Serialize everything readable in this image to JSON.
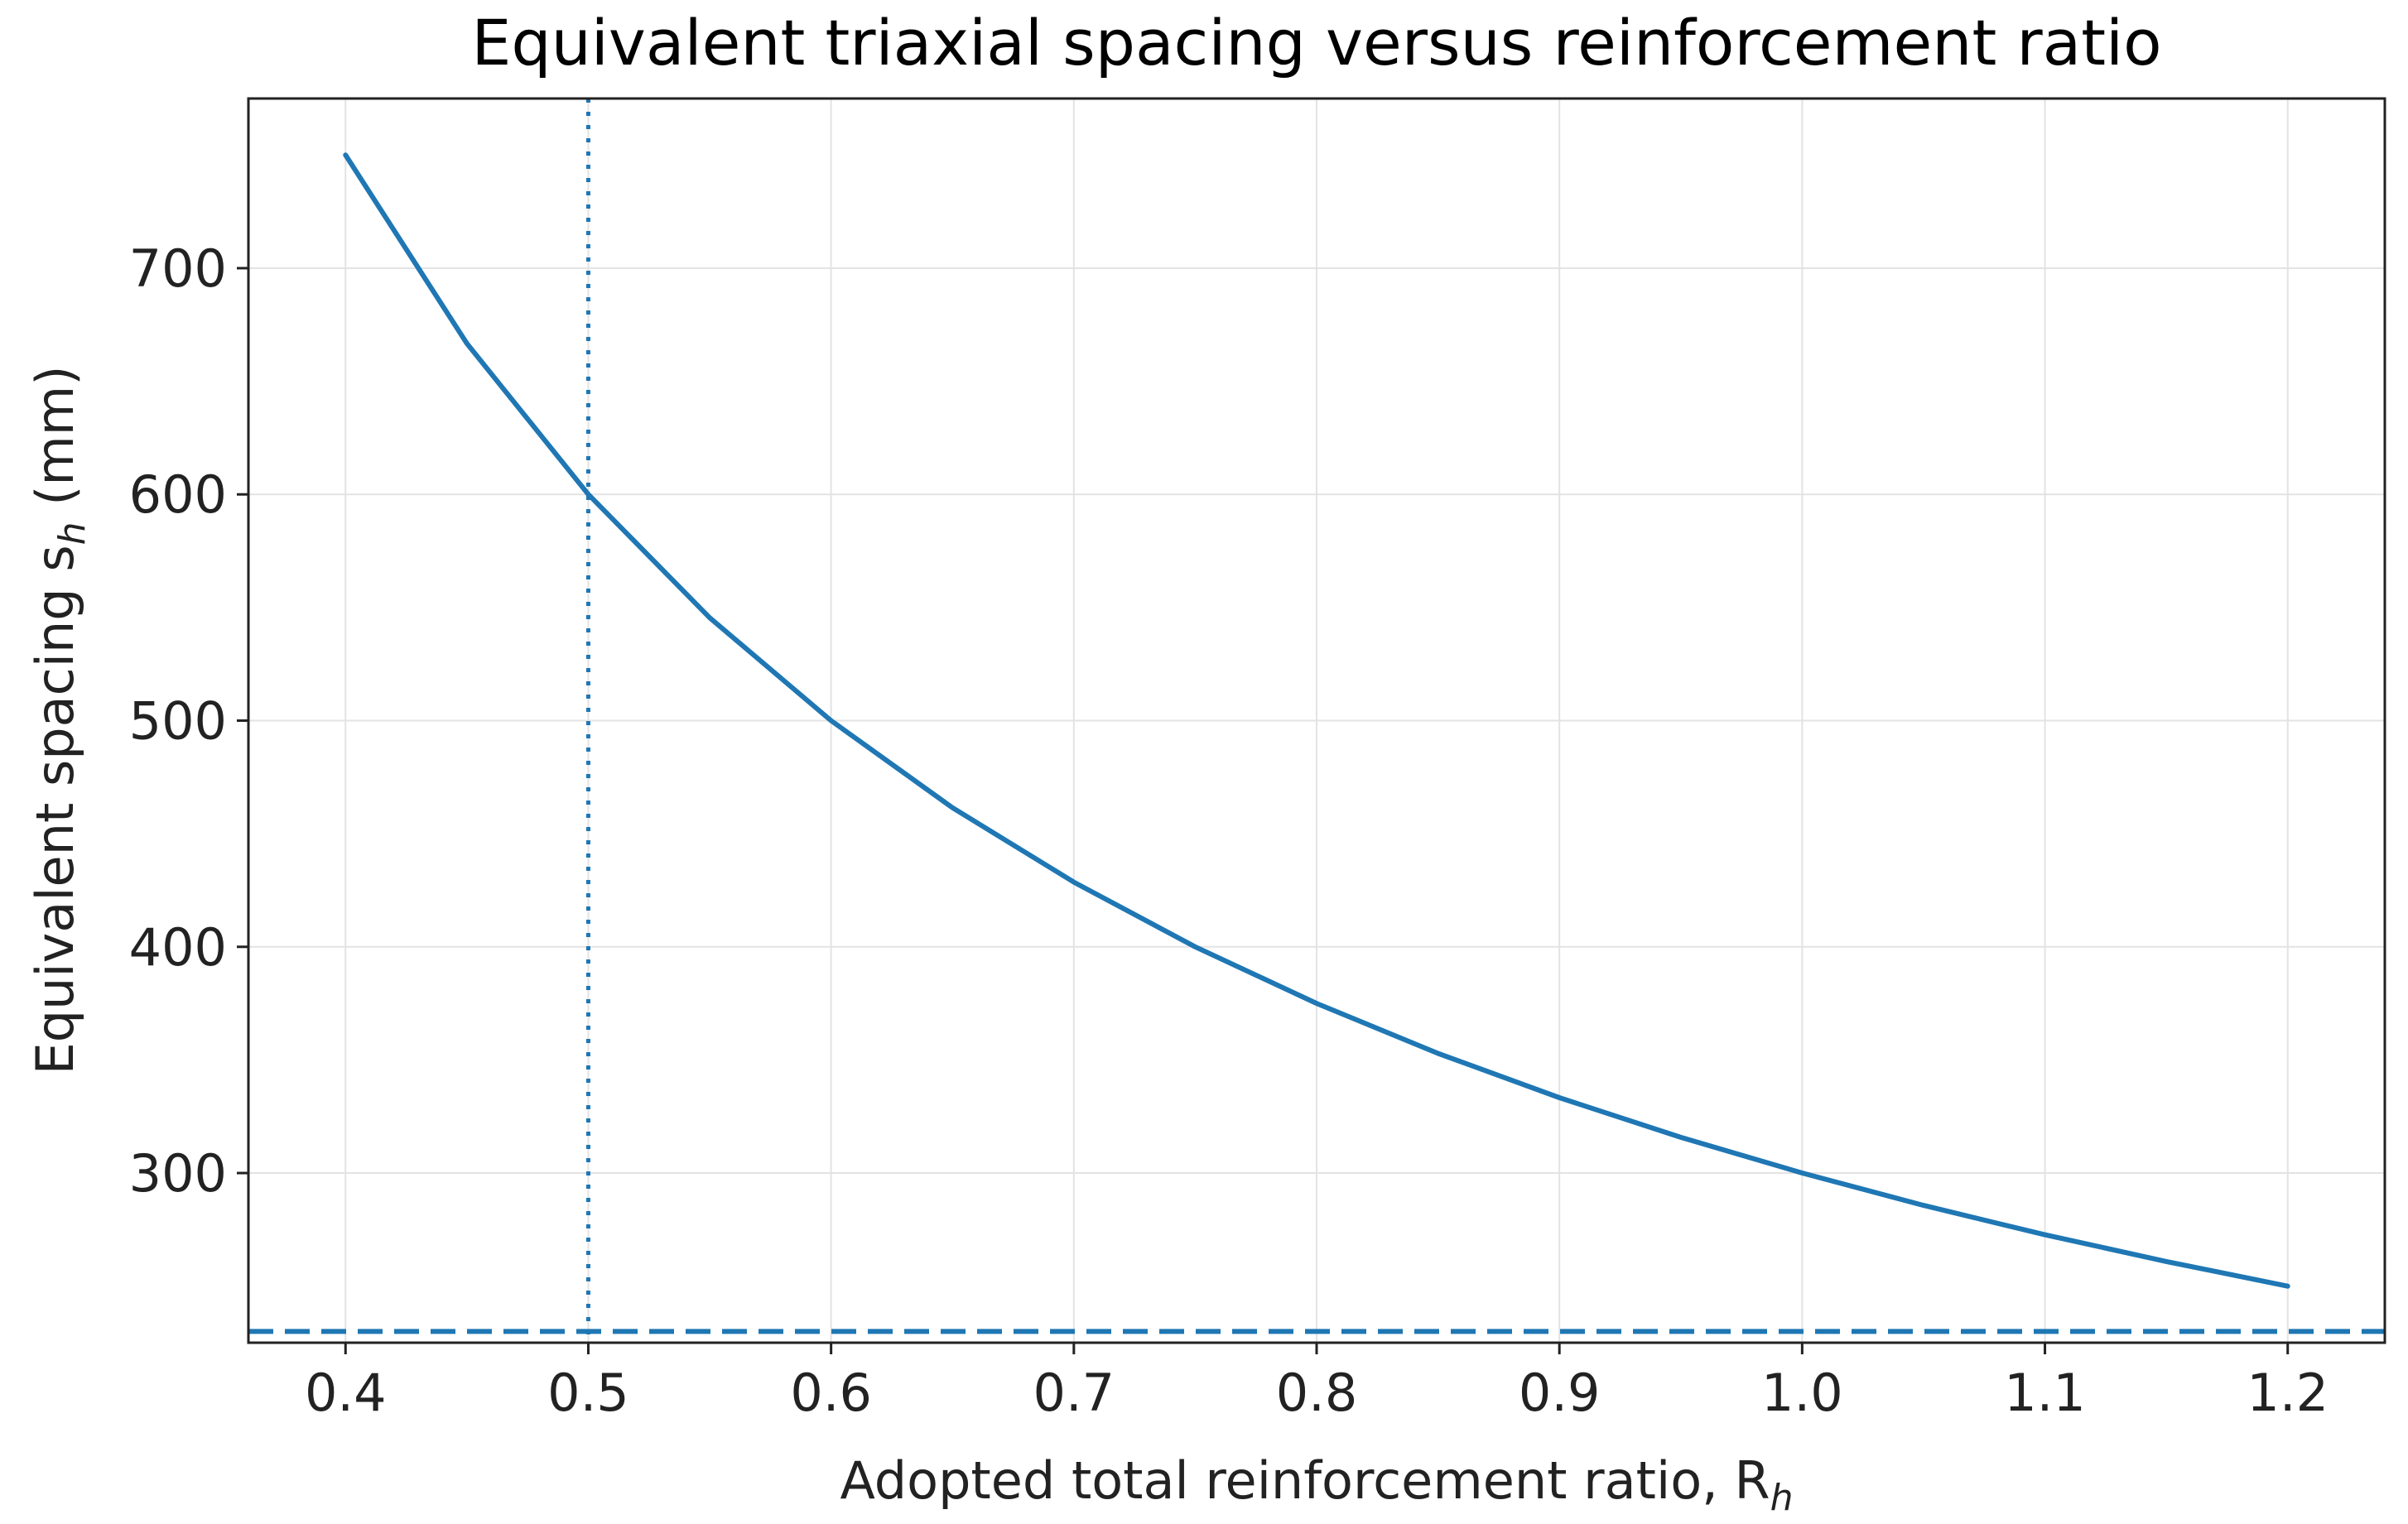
{
  "chart_data": {
    "type": "line",
    "title": "Equivalent triaxial spacing versus reinforcement ratio",
    "xlabel": "Adopted total reinforcement ratio, R",
    "xlabel_subscript": "h",
    "ylabel": "Equivalent spacing s",
    "ylabel_subscript": "h",
    "ylabel_unit": " (mm)",
    "xlim": [
      0.36,
      1.24
    ],
    "ylim": [
      225,
      775
    ],
    "xticks": [
      0.4,
      0.5,
      0.6,
      0.7,
      0.8,
      0.9,
      1.0,
      1.1,
      1.2
    ],
    "xtick_labels": [
      "0.4",
      "0.5",
      "0.6",
      "0.7",
      "0.8",
      "0.9",
      "1.0",
      "1.1",
      "1.2"
    ],
    "yticks": [
      300,
      400,
      500,
      600,
      700
    ],
    "ytick_labels": [
      "300",
      "400",
      "500",
      "600",
      "700"
    ],
    "grid": true,
    "series": [
      {
        "style": "solid",
        "color": "#1f77b4",
        "x": [
          0.4,
          0.45,
          0.5,
          0.55,
          0.6,
          0.65,
          0.7,
          0.75,
          0.8,
          0.85,
          0.9,
          0.95,
          1.0,
          1.05,
          1.1,
          1.15,
          1.2
        ],
        "y": [
          750,
          666.7,
          600,
          545.5,
          500,
          461.5,
          428.6,
          400,
          375,
          352.9,
          333.3,
          315.8,
          300,
          285.7,
          272.7,
          260.9,
          250
        ]
      }
    ],
    "reference_lines": [
      {
        "orientation": "vertical",
        "x": 0.5,
        "style": "dotted",
        "color": "#1f77b4"
      },
      {
        "orientation": "horizontal",
        "y": 230,
        "style": "dashed",
        "color": "#1f77b4"
      }
    ]
  }
}
